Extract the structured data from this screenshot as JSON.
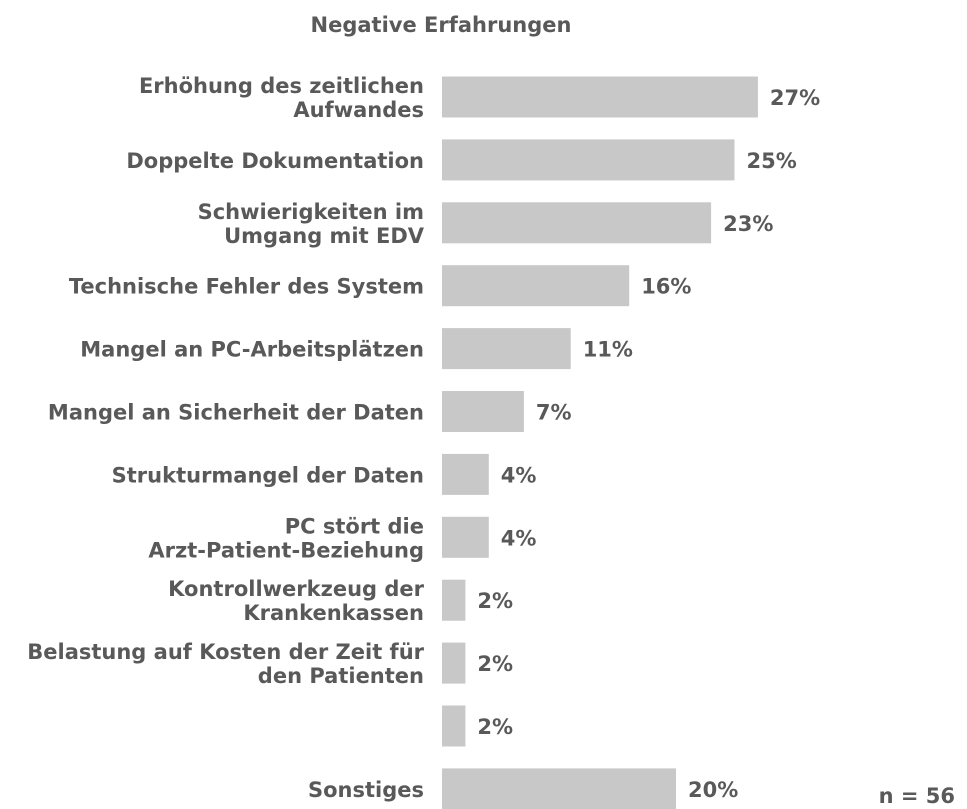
{
  "chart_data": {
    "type": "barh",
    "title": "Negative Erfahrungen",
    "categories": [
      "Erhöhung des zeitlichen\nAufwandes",
      "Doppelte Dokumentation",
      "Schwierigkeiten im\nUmgang mit EDV",
      "Technische Fehler des System",
      "Mangel an PC-Arbeitsplätzen",
      "Mangel an Sicherheit der Daten",
      "Strukturmangel der Daten",
      "PC stört die\nArzt-Patient-Beziehung",
      "Kontrollwerkzeug der\nKrankenkassen",
      "Belastung auf Kosten der Zeit für\nden Patienten",
      null,
      "Sonstiges"
    ],
    "values": [
      27,
      25,
      23,
      16,
      11,
      7,
      4,
      4,
      2,
      2,
      2,
      20
    ],
    "value_labels": [
      "27%",
      "25%",
      "23%",
      "16%",
      "11%",
      "7%",
      "4%",
      "4%",
      "2%",
      "2%",
      "2%",
      "20%"
    ],
    "color": "#c8c8c8",
    "annotation": "n = 56"
  }
}
